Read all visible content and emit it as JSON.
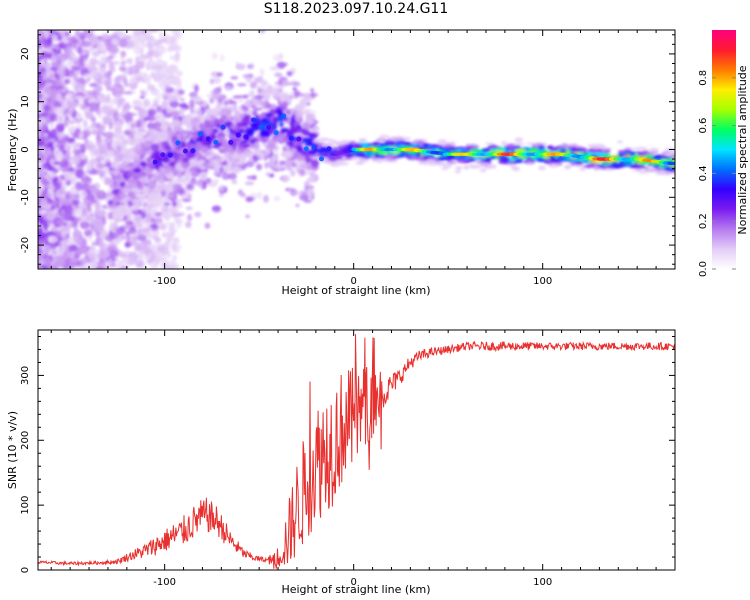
{
  "figure": {
    "title": "S118.2023.097.10.24.G11"
  },
  "chart_data": [
    {
      "type": "heatmap",
      "xlabel": "Height of straight line (km)",
      "ylabel": "Frequency (Hz)",
      "xlim": [
        -167,
        170
      ],
      "ylim": [
        -25,
        25
      ],
      "x_ticks": [
        -100,
        0,
        100
      ],
      "y_ticks": [
        -20,
        -10,
        0,
        10,
        20
      ],
      "grid": false,
      "colorbar": {
        "label": "Normalized spectral amplitude",
        "range": [
          0,
          1
        ],
        "ticks": [
          "0.0",
          "0.2",
          "0.4",
          "0.6",
          "0.8"
        ],
        "colormap": [
          "#ffffff",
          "#e3ccf7",
          "#b67af0",
          "#7a1cf0",
          "#3300ff",
          "#0070ff",
          "#00e5ff",
          "#00ff60",
          "#a6ff00",
          "#ffee00",
          "#ff7a00",
          "#ff1a30",
          "#ff0080"
        ]
      },
      "ridge": {
        "x": [
          -125,
          -110,
          -95,
          -80,
          -65,
          -50,
          -40,
          -30,
          -20,
          -10,
          0,
          10,
          30,
          50,
          70,
          90,
          110,
          130,
          150,
          170
        ],
        "frequency": [
          -8,
          -3,
          -1,
          2,
          3,
          5,
          6,
          3,
          0,
          -1,
          0,
          0,
          0,
          -1,
          -1,
          -1,
          -1,
          -2,
          -2,
          -3
        ],
        "peak_amplitude": [
          0.25,
          0.3,
          0.3,
          0.32,
          0.35,
          0.4,
          0.4,
          0.4,
          0.4,
          0.45,
          0.55,
          0.9,
          0.8,
          0.7,
          0.92,
          0.9,
          0.8,
          0.93,
          0.9,
          0.7
        ]
      }
    },
    {
      "type": "line",
      "xlabel": "Height of straight line (km)",
      "ylabel": "SNR (10 * v/v)",
      "xlim": [
        -167,
        170
      ],
      "ylim": [
        0,
        370
      ],
      "x_ticks": [
        -100,
        0,
        100
      ],
      "y_ticks": [
        0,
        100,
        200,
        300
      ],
      "grid": false,
      "series": [
        {
          "color": "#e8302e",
          "x": [
            -167,
            -150,
            -135,
            -125,
            -118,
            -110,
            -100,
            -90,
            -82,
            -78,
            -72,
            -65,
            -58,
            -52,
            -45,
            -40,
            -35,
            -30,
            -25,
            -20,
            -15,
            -10,
            -5,
            0,
            5,
            10,
            15,
            20,
            25,
            30,
            35,
            40,
            50,
            60,
            80,
            100,
            120,
            140,
            160,
            170
          ],
          "y": [
            12,
            10,
            11,
            13,
            22,
            30,
            45,
            60,
            80,
            85,
            75,
            45,
            25,
            18,
            15,
            20,
            50,
            95,
            130,
            165,
            185,
            200,
            225,
            230,
            250,
            260,
            270,
            285,
            300,
            320,
            330,
            335,
            340,
            345,
            345,
            345,
            345,
            345,
            345,
            345
          ],
          "noise_amplitude": [
            4,
            4,
            4,
            6,
            12,
            20,
            30,
            40,
            45,
            45,
            40,
            25,
            12,
            8,
            6,
            15,
            45,
            70,
            80,
            85,
            90,
            90,
            80,
            75,
            60,
            55,
            45,
            30,
            22,
            18,
            15,
            12,
            10,
            10,
            12,
            10,
            10,
            10,
            10,
            10
          ]
        }
      ]
    }
  ]
}
